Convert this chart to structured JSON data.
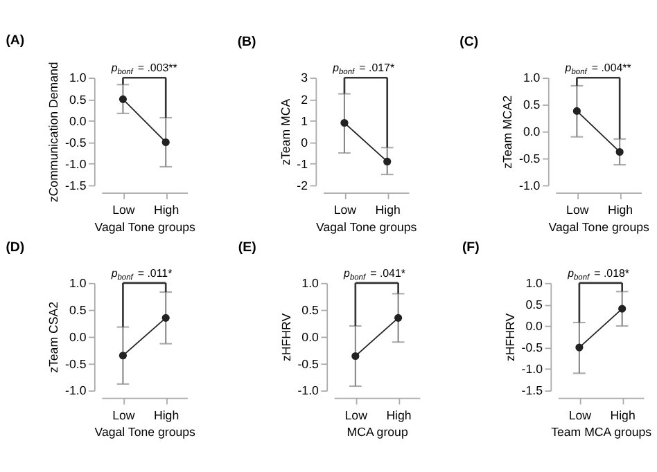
{
  "chart_data": [
    {
      "type": "line",
      "title": "(A)",
      "categories": [
        "Low",
        "High"
      ],
      "values": [
        0.5,
        -0.5
      ],
      "errors": [
        [
          0.17,
          0.84
        ],
        [
          -1.07,
          0.07
        ]
      ],
      "color": "#222222",
      "marker": "circle",
      "xlabel": "Vagal Tone groups",
      "ylabel": "zCommunication Demand",
      "ylim": [
        -1.5,
        1.0
      ],
      "yticks": [
        -1.5,
        {
          "value": -1,
          "label": "-1.0"
        },
        -0.5,
        {
          "value": 0,
          "label": "0.0"
        },
        0.5,
        {
          "value": 1,
          "label": "1.0"
        }
      ],
      "annotations": [
        "p$_{bonf}$ = .003**"
      ]
    },
    {
      "type": "line",
      "title": "(B)",
      "categories": [
        "Low",
        "High"
      ],
      "values": [
        0.9,
        -0.9
      ],
      "errors": [
        [
          -0.5,
          2.25
        ],
        [
          -1.5,
          -0.25
        ]
      ],
      "color": "#222222",
      "marker": "circle",
      "xlabel": "Vagal Tone groups",
      "ylabel": "zTeam MCA",
      "ylim": [
        -2,
        3
      ],
      "yticks": [
        -2,
        -1,
        0,
        1,
        2,
        3
      ],
      "annotations": [
        "p$_{bonf}$ = .017*"
      ]
    },
    {
      "type": "line",
      "title": "(C)",
      "categories": [
        "Low",
        "High"
      ],
      "values": [
        0.38,
        -0.38
      ],
      "errors": [
        [
          -0.1,
          0.85
        ],
        [
          -0.62,
          -0.14
        ]
      ],
      "color": "#222222",
      "marker": "circle",
      "xlabel": "Vagal Tone groups",
      "ylabel": "zTeam MCA2",
      "ylim": [
        -1.0,
        1.0
      ],
      "yticks": [
        {
          "value": -1,
          "label": "-1.0"
        },
        -0.5,
        {
          "value": 0,
          "label": "0.0"
        },
        0.5,
        {
          "value": 1,
          "label": "1.0"
        }
      ],
      "annotations": [
        "p$_{bonf}$ = .004**"
      ]
    },
    {
      "type": "line",
      "title": "(D)",
      "categories": [
        "Low",
        "High"
      ],
      "values": [
        -0.35,
        0.35
      ],
      "errors": [
        [
          -0.88,
          0.18
        ],
        [
          -0.13,
          0.83
        ]
      ],
      "color": "#222222",
      "marker": "circle",
      "xlabel": "Vagal Tone groups",
      "ylabel": "zTeam CSA2",
      "ylim": [
        -1.0,
        1.0
      ],
      "yticks": [
        {
          "value": -1,
          "label": "-1.0"
        },
        -0.5,
        {
          "value": 0,
          "label": "0.0"
        },
        0.5,
        {
          "value": 1,
          "label": "1.0"
        }
      ],
      "annotations": [
        "p$_{bonf}$ = .011*"
      ]
    },
    {
      "type": "line",
      "title": "(E)",
      "categories": [
        "Low",
        "High"
      ],
      "values": [
        -0.36,
        0.35
      ],
      "errors": [
        [
          -0.92,
          0.2
        ],
        [
          -0.1,
          0.8
        ]
      ],
      "color": "#222222",
      "marker": "circle",
      "xlabel": "MCA group",
      "ylabel": "zHFHRV",
      "ylim": [
        -1.0,
        1.0
      ],
      "yticks": [
        {
          "value": -1,
          "label": "-1.0"
        },
        -0.5,
        {
          "value": 0,
          "label": "0.0"
        },
        0.5,
        {
          "value": 1,
          "label": "1.0"
        }
      ],
      "annotations": [
        "p$_{bonf}$ = .041*"
      ]
    },
    {
      "type": "line",
      "title": "(F)",
      "categories": [
        "Low",
        "High"
      ],
      "values": [
        -0.5,
        0.4
      ],
      "errors": [
        [
          -1.1,
          0.08
        ],
        [
          0.0,
          0.8
        ]
      ],
      "color": "#222222",
      "marker": "circle",
      "xlabel": "Team MCA groups",
      "ylabel": "zHFHRV",
      "ylim": [
        -1.5,
        1.0
      ],
      "yticks": [
        -1.5,
        {
          "value": -1,
          "label": "-1.0"
        },
        -0.5,
        {
          "value": 0,
          "label": "0.0"
        },
        0.5,
        {
          "value": 1,
          "label": "1.0"
        }
      ],
      "annotations": [
        "p$_{bonf}$ = .018*"
      ]
    }
  ]
}
